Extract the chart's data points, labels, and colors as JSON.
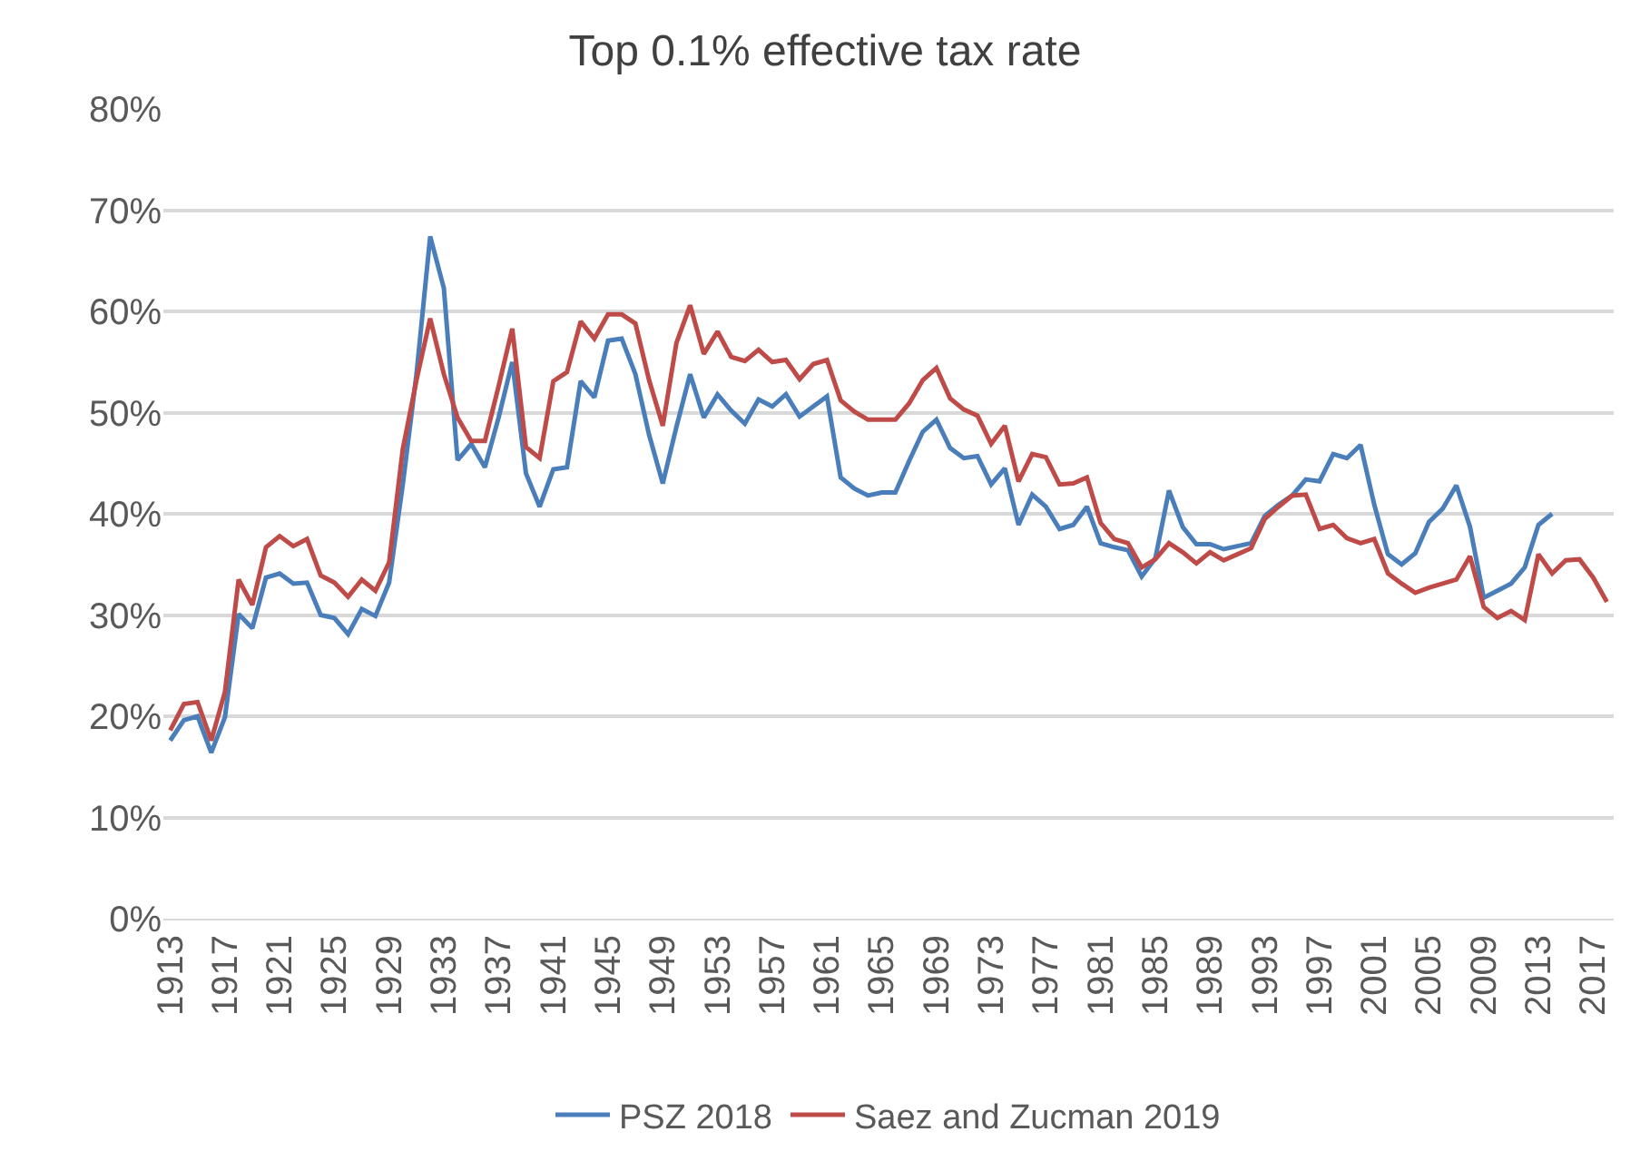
{
  "chart_data": {
    "type": "line",
    "title": "Top 0.1% effective tax rate",
    "x": [
      1913,
      1914,
      1915,
      1916,
      1917,
      1918,
      1919,
      1920,
      1921,
      1922,
      1923,
      1924,
      1925,
      1926,
      1927,
      1928,
      1929,
      1930,
      1931,
      1932,
      1933,
      1934,
      1935,
      1936,
      1937,
      1938,
      1939,
      1940,
      1941,
      1942,
      1943,
      1944,
      1945,
      1946,
      1947,
      1948,
      1949,
      1950,
      1951,
      1952,
      1953,
      1954,
      1955,
      1956,
      1957,
      1958,
      1959,
      1960,
      1961,
      1962,
      1963,
      1964,
      1965,
      1966,
      1967,
      1968,
      1969,
      1970,
      1971,
      1972,
      1973,
      1974,
      1975,
      1976,
      1977,
      1978,
      1979,
      1980,
      1981,
      1982,
      1983,
      1984,
      1985,
      1986,
      1987,
      1988,
      1989,
      1990,
      1991,
      1992,
      1993,
      1994,
      1995,
      1996,
      1997,
      1998,
      1999,
      2000,
      2001,
      2002,
      2003,
      2004,
      2005,
      2006,
      2007,
      2008,
      2009,
      2010,
      2011,
      2012,
      2013,
      2014,
      2015,
      2016,
      2017,
      2018
    ],
    "series": [
      {
        "name": "PSZ 2018",
        "color": "#4a7ebb",
        "values": [
          17.6,
          19.6,
          20.0,
          16.4,
          19.9,
          30.1,
          28.7,
          33.7,
          34.1,
          33.1,
          33.2,
          30.0,
          29.7,
          28.1,
          30.6,
          29.9,
          33.2,
          42.9,
          53.8,
          67.4,
          62.3,
          45.3,
          46.9,
          44.6,
          49.5,
          55.0,
          44.0,
          40.7,
          44.4,
          44.6,
          53.1,
          51.5,
          57.1,
          57.3,
          53.8,
          47.8,
          43.0,
          48.6,
          53.8,
          49.5,
          51.8,
          50.2,
          48.9,
          51.3,
          50.6,
          51.8,
          49.6,
          50.6,
          51.6,
          43.6,
          42.5,
          41.8,
          42.1,
          42.1,
          45.2,
          48.1,
          49.3,
          46.5,
          45.5,
          45.7,
          42.9,
          44.5,
          38.9,
          41.9,
          40.7,
          38.5,
          38.9,
          40.7,
          37.1,
          36.7,
          36.4,
          33.8,
          35.6,
          42.3,
          38.7,
          37.0,
          37.0,
          36.5,
          36.8,
          37.1,
          39.8,
          40.9,
          41.8,
          43.4,
          43.2,
          45.9,
          45.5,
          46.8,
          40.9,
          36.0,
          35.0,
          36.1,
          39.2,
          40.5,
          42.8,
          38.7,
          31.7,
          32.4,
          33.1,
          34.7,
          38.9,
          40.0,
          null,
          null,
          null,
          null
        ]
      },
      {
        "name": "Saez and Zucman 2019",
        "color": "#be4b48",
        "values": [
          18.6,
          21.2,
          21.4,
          17.6,
          22.4,
          33.5,
          31.0,
          36.7,
          37.8,
          36.8,
          37.5,
          33.9,
          33.2,
          31.8,
          33.5,
          32.4,
          35.2,
          46.4,
          53.2,
          59.3,
          53.8,
          49.5,
          47.2,
          47.2,
          52.6,
          58.3,
          46.6,
          45.5,
          53.1,
          54.0,
          59.0,
          57.3,
          59.7,
          59.7,
          58.8,
          53.2,
          48.7,
          56.9,
          60.6,
          55.8,
          58.0,
          55.5,
          55.1,
          56.2,
          55.0,
          55.2,
          53.3,
          54.8,
          55.2,
          51.2,
          50.1,
          49.3,
          49.3,
          49.3,
          50.9,
          53.2,
          54.4,
          51.4,
          50.3,
          49.7,
          46.9,
          48.7,
          43.2,
          45.9,
          45.6,
          42.9,
          43.0,
          43.6,
          39.1,
          37.5,
          37.1,
          34.7,
          35.5,
          37.1,
          36.2,
          35.1,
          36.2,
          35.4,
          36.0,
          36.6,
          39.5,
          40.7,
          41.8,
          41.9,
          38.5,
          38.9,
          37.6,
          37.1,
          37.5,
          34.1,
          33.1,
          32.2,
          32.7,
          33.1,
          33.5,
          35.8,
          30.8,
          29.7,
          30.4,
          29.5,
          36.0,
          34.1,
          35.4,
          35.5,
          33.7,
          31.3
        ]
      }
    ],
    "xlim": [
      1912.5,
      2018.5
    ],
    "xticks": [
      1913,
      1917,
      1921,
      1925,
      1929,
      1933,
      1937,
      1941,
      1945,
      1949,
      1953,
      1957,
      1961,
      1965,
      1969,
      1973,
      1977,
      1981,
      1985,
      1989,
      1993,
      1997,
      2001,
      2005,
      2009,
      2013,
      2017
    ],
    "ylim": [
      0,
      80
    ],
    "yticks": [
      {
        "value": 0,
        "label": "0%"
      },
      {
        "value": 10,
        "label": "10%"
      },
      {
        "value": 20,
        "label": "20%"
      },
      {
        "value": 30,
        "label": "30%"
      },
      {
        "value": 40,
        "label": "40%"
      },
      {
        "value": 50,
        "label": "50%"
      },
      {
        "value": 60,
        "label": "60%"
      },
      {
        "value": 70,
        "label": "70%"
      },
      {
        "value": 80,
        "label": "80%"
      }
    ],
    "grid": "y",
    "legend": "bottom",
    "marker": "none",
    "line_style": "solid"
  }
}
